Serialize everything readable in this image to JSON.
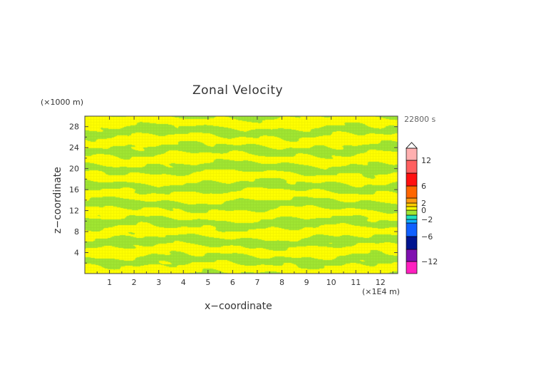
{
  "chart_data": {
    "type": "heatmap",
    "title": "Zonal Velocity",
    "xlabel": "x−coordinate",
    "ylabel": "z−coordinate",
    "x_unit": "(×1E4 m)",
    "y_unit": "(×1000 m)",
    "time_label": "22800 s",
    "xlim": [
      0,
      12.7
    ],
    "ylim": [
      0,
      30
    ],
    "x_ticks": [
      "1",
      "2",
      "3",
      "4",
      "5",
      "6",
      "7",
      "8",
      "9",
      "10",
      "11",
      "12"
    ],
    "y_ticks": [
      "4",
      "8",
      "12",
      "16",
      "20",
      "24",
      "28"
    ],
    "grid": false,
    "field_description_colors": {
      "0_to_1": "#ffff00",
      "-1_to_0": "#a0e632"
    },
    "colorbar": {
      "extend": "max",
      "tick_labels": [
        "12",
        "6",
        "2",
        "0",
        "−2",
        "−6",
        "−12"
      ],
      "tick_values": [
        12,
        6,
        2,
        0,
        -2,
        -6,
        -12
      ],
      "levels": [
        -15,
        -12,
        -9,
        -6,
        -3,
        -2,
        -1,
        0,
        1,
        2,
        3,
        6,
        9,
        12,
        15
      ],
      "colors": [
        "#ff20c0",
        "#8010b0",
        "#001490",
        "#1060ff",
        "#10b0ff",
        "#20e0c0",
        "#a0e632",
        "#ffff00",
        "#ffcc00",
        "#ff9a10",
        "#ff6600",
        "#ff1010",
        "#ff6060",
        "#ffb0b0"
      ]
    }
  }
}
